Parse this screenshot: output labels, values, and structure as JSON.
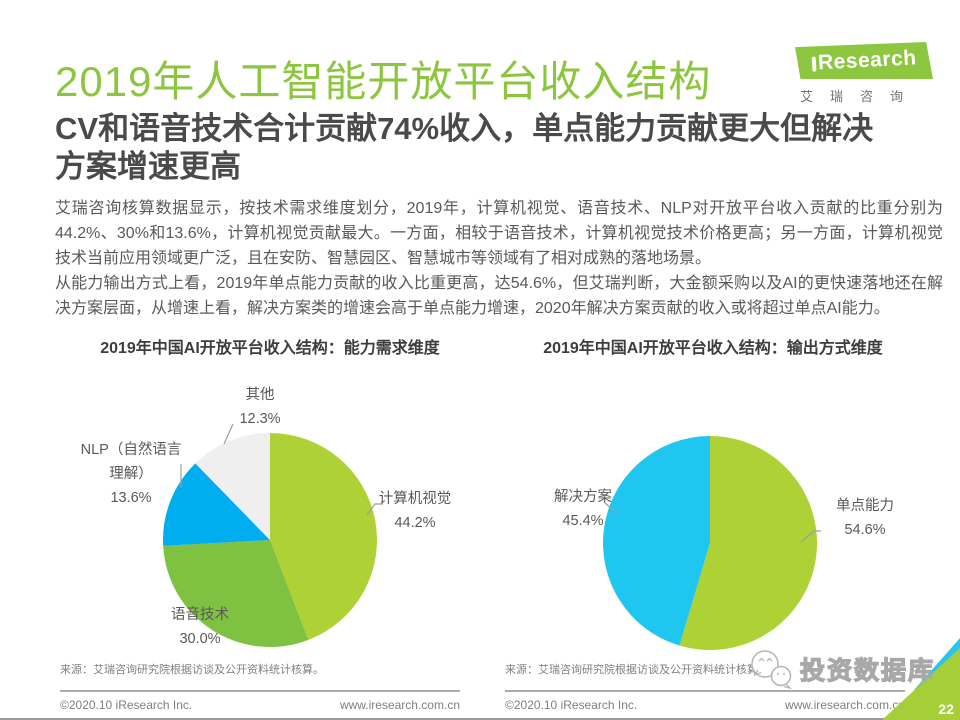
{
  "header": {
    "title": "2019年人工智能开放平台收入结构",
    "subtitle_line1": "CV和语音技术合计贡献74%收入，单点能力贡献更大但解决",
    "subtitle_line2": "方案增速更高",
    "logo": {
      "brand": "iResearch",
      "brand_display": "Research",
      "caption": "艾瑞咨询"
    }
  },
  "body": {
    "paragraph1": "艾瑞咨询核算数据显示，按技术需求维度划分，2019年，计算机视觉、语音技术、NLP对开放平台收入贡献的比重分别为44.2%、30%和13.6%，计算机视觉贡献最大。一方面，相较于语音技术，计算机视觉技术价格更高；另一方面，计算机视觉技术当前应用领域更广泛，且在安防、智慧园区、智慧城市等领域有了相对成熟的落地场景。",
    "paragraph2": "从能力输出方式上看，2019年单点能力贡献的收入比重更高，达54.6%，但艾瑞判断，大金额采购以及AI的更快速落地还在解决方案层面，从增速上看，解决方案类的增速会高于单点能力增速，2020年解决方案贡献的收入或将超过单点AI能力。"
  },
  "chart_data": [
    {
      "type": "pie",
      "title": "2019年中国AI开放平台收入结构：能力需求维度",
      "labels": [
        "计算机视觉",
        "语音技术",
        "NLP（自然语言理解）",
        "其他"
      ],
      "values": [
        44.2,
        30.0,
        13.6,
        12.3
      ],
      "display_values": [
        "44.2%",
        "30.0%",
        "13.6%",
        "12.3%"
      ],
      "colors": [
        "#AED136",
        "#7FC241",
        "#00AEEF",
        "#EFEFEF"
      ],
      "unit": "%",
      "start_angle_deg": 0,
      "direction": "clockwise",
      "nlp_label_line1": "NLP（自然语言",
      "nlp_label_line2": "理解）",
      "source": "来源：艾瑞咨询研究院根据访谈及公开资料统计核算。"
    },
    {
      "type": "pie",
      "title": "2019年中国AI开放平台收入结构：输出方式维度",
      "labels": [
        "单点能力",
        "解决方案"
      ],
      "values": [
        54.6,
        45.4
      ],
      "display_values": [
        "54.6%",
        "45.4%"
      ],
      "colors": [
        "#AED136",
        "#1FC6F0"
      ],
      "unit": "%",
      "start_angle_deg": 0,
      "direction": "clockwise",
      "source": "来源：艾瑞咨询研究院根据访谈及公开资料统计核算。"
    }
  ],
  "footer": {
    "copyright": "©2020.10 iResearch Inc.",
    "website": "www.iresearch.com.cn",
    "page_number": "22"
  },
  "watermark": {
    "label": "投资数据库",
    "icon": "wechat-icon"
  },
  "colors": {
    "title_green": "#8CC63F",
    "logo_green": "#8DC63F",
    "logo_dot_blue": "#3279BD",
    "subtitle_gray": "#4A4A4A",
    "body_gray": "#595959",
    "pie_green_light": "#AED136",
    "pie_green": "#7FC241",
    "pie_blue": "#00AEEF",
    "pie_cyan": "#1FC6F0",
    "pie_gray": "#EFEFEF",
    "corner_green": "#A6CE39",
    "corner_cyan": "#29C5EE"
  }
}
